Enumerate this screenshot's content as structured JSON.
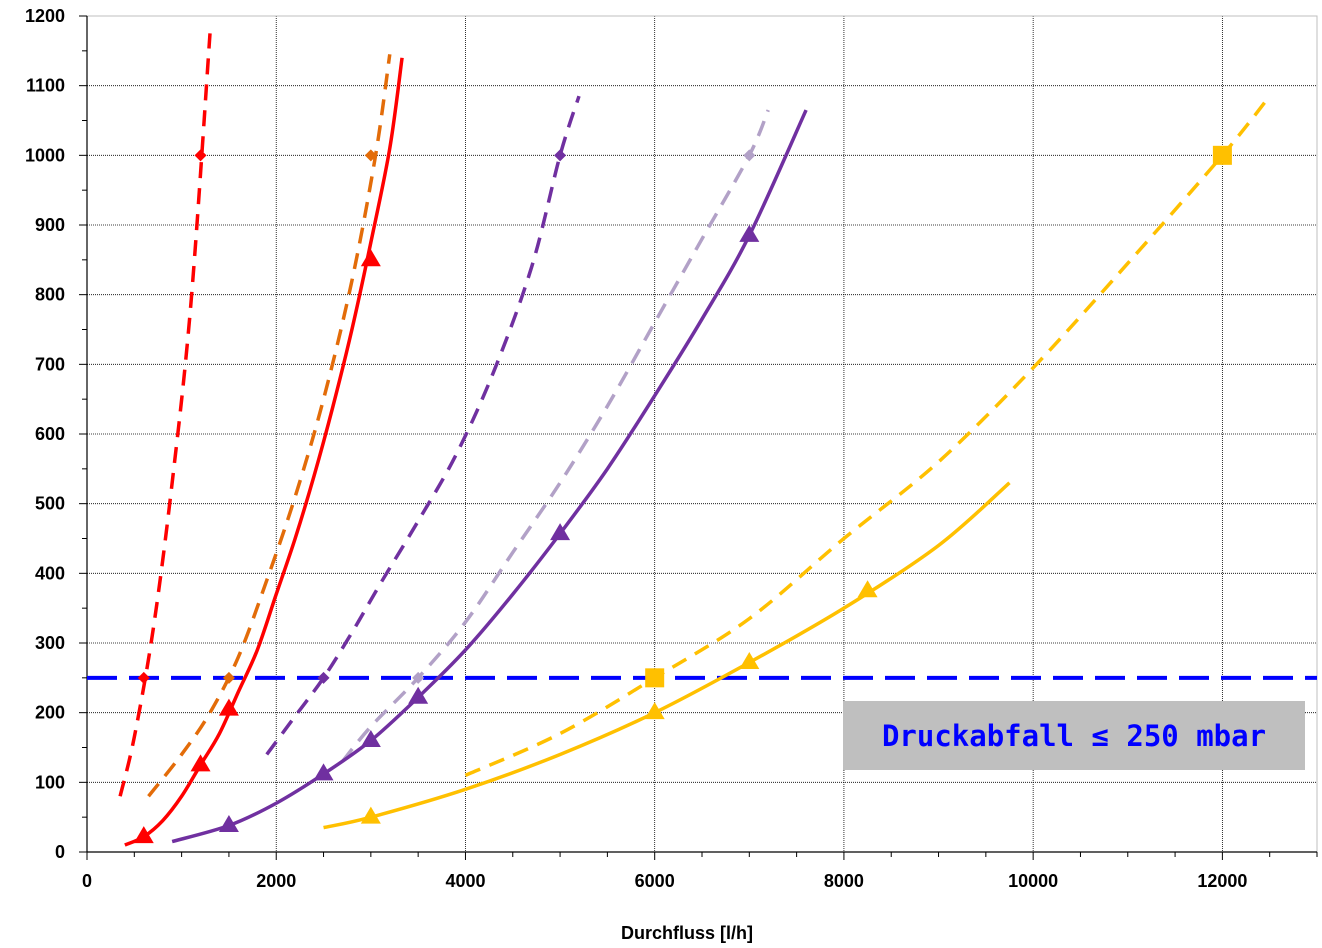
{
  "chart_data": {
    "type": "line",
    "title": "",
    "xlabel": "Durchfluss  [l/h]",
    "ylabel": "",
    "xlim": [
      0,
      13000
    ],
    "ylim": [
      0,
      1200
    ],
    "xticks": [
      0,
      2000,
      4000,
      6000,
      8000,
      10000,
      12000
    ],
    "yticks": [
      0,
      100,
      200,
      300,
      400,
      500,
      600,
      700,
      800,
      900,
      1000,
      1100,
      1200
    ],
    "grid": true,
    "legend": "none",
    "threshold": {
      "value": 250,
      "color": "#0000ff",
      "style": "dashed"
    },
    "annotation": "Druckabfall ≤ 250 mbar",
    "series": [
      {
        "color": "#ff0000",
        "style": "dashed",
        "marker": "diamond",
        "curve_x": [
          350,
          500,
          700,
          900,
          1100,
          1300
        ],
        "curve_y": [
          80,
          165,
          320,
          530,
          790,
          1175
        ],
        "points": [
          [
            600,
            250
          ],
          [
            1200,
            1000
          ]
        ]
      },
      {
        "color": "#ff0000",
        "style": "solid",
        "marker": "triangle",
        "curve_x": [
          400,
          600,
          800,
          1000,
          1200,
          1400,
          1600,
          1800,
          2000,
          2200,
          2400,
          2600,
          2800,
          3000,
          3200,
          3330
        ],
        "curve_y": [
          10,
          22,
          45,
          80,
          125,
          170,
          230,
          290,
          370,
          450,
          540,
          640,
          750,
          875,
          1010,
          1140
        ],
        "points": [
          [
            600,
            22
          ],
          [
            1200,
            125
          ],
          [
            1500,
            205
          ],
          [
            3000,
            850
          ]
        ]
      },
      {
        "color": "#e36c09",
        "style": "dashed",
        "marker": "diamond",
        "curve_x": [
          650,
          1000,
          1300,
          1600,
          1900,
          2200,
          2500,
          2800,
          3050,
          3200
        ],
        "curve_y": [
          80,
          140,
          200,
          280,
          390,
          510,
          650,
          820,
          1000,
          1145
        ],
        "points": [
          [
            1500,
            250
          ],
          [
            3000,
            1000
          ]
        ]
      },
      {
        "color": "#7030a0",
        "style": "dashed",
        "marker": "diamond",
        "curve_x": [
          1900,
          2200,
          2500,
          2800,
          3100,
          3500,
          3900,
          4300,
          4700,
          5000,
          5200
        ],
        "curve_y": [
          140,
          195,
          250,
          315,
          385,
          475,
          570,
          690,
          840,
          1000,
          1085
        ],
        "points": [
          [
            2500,
            250
          ],
          [
            5000,
            1000
          ]
        ]
      },
      {
        "color": "#b2a1c7",
        "style": "dashed",
        "marker": "diamond",
        "curve_x": [
          2700,
          3000,
          3500,
          4000,
          4500,
          5000,
          5500,
          6000,
          6500,
          7000,
          7200
        ],
        "curve_y": [
          130,
          180,
          250,
          330,
          430,
          530,
          640,
          760,
          880,
          1000,
          1065
        ],
        "points": [
          [
            3500,
            250
          ],
          [
            7000,
            1000
          ]
        ]
      },
      {
        "color": "#7030a0",
        "style": "solid",
        "marker": "triangle",
        "curve_x": [
          900,
          1500,
          2000,
          2500,
          3000,
          3500,
          4000,
          4500,
          5000,
          5500,
          6000,
          6500,
          7000,
          7600
        ],
        "curve_y": [
          15,
          38,
          70,
          112,
          160,
          222,
          290,
          370,
          457,
          550,
          655,
          765,
          885,
          1065
        ],
        "points": [
          [
            1500,
            38
          ],
          [
            2500,
            112
          ],
          [
            3000,
            160
          ],
          [
            3500,
            222
          ],
          [
            5000,
            457
          ],
          [
            7000,
            885
          ]
        ]
      },
      {
        "color": "#ffc000",
        "style": "dashed",
        "marker": "square",
        "curve_x": [
          4000,
          5000,
          6000,
          7000,
          8000,
          9000,
          10000,
          11000,
          12000,
          12500
        ],
        "curve_y": [
          110,
          170,
          250,
          335,
          450,
          560,
          695,
          845,
          1000,
          1085
        ],
        "points": [
          [
            6000,
            250
          ],
          [
            12000,
            1000
          ]
        ]
      },
      {
        "color": "#ffc000",
        "style": "solid",
        "marker": "triangle",
        "curve_x": [
          2500,
          3000,
          4000,
          5000,
          6000,
          7000,
          8000,
          9000,
          9750
        ],
        "curve_y": [
          35,
          50,
          90,
          140,
          200,
          272,
          350,
          440,
          530
        ],
        "points": [
          [
            3000,
            50
          ],
          [
            6000,
            200
          ],
          [
            7000,
            272
          ],
          [
            8250,
            375
          ]
        ]
      }
    ]
  }
}
